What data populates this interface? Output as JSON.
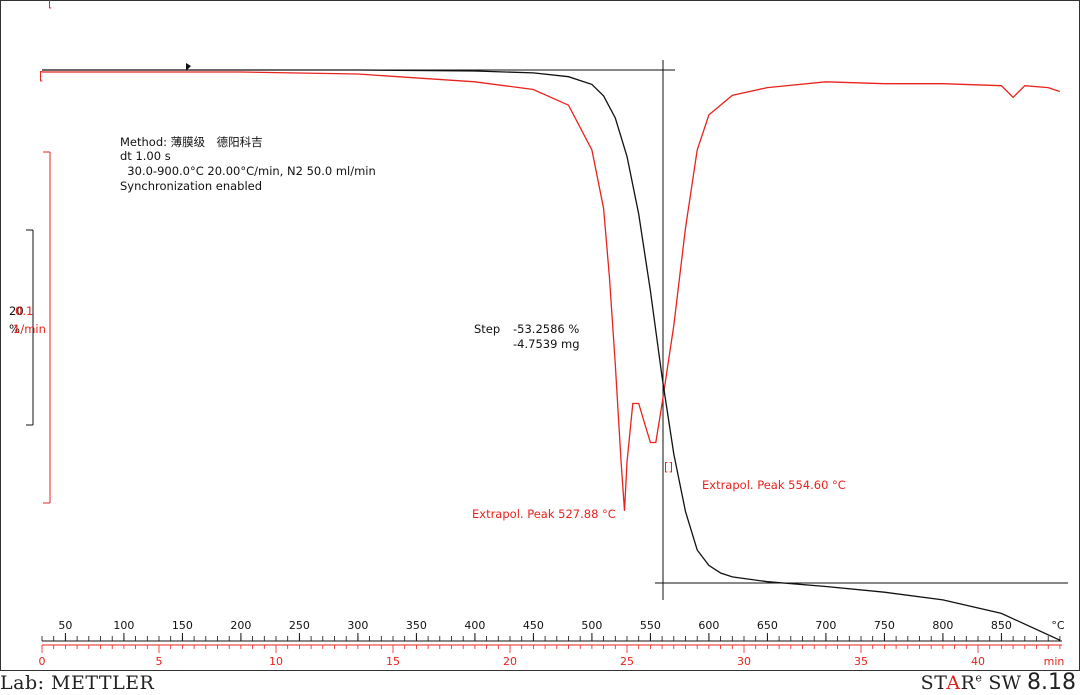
{
  "colors": {
    "tg": "#111111",
    "dtg": "#e8231d"
  },
  "method": {
    "line1": "Method: 薄膜级　德阳科吉",
    "line2": "dt 1.00 s",
    "line3": "  30.0-900.0°C 20.00°C/min, N2 50.0 ml/min",
    "line4": "Synchronization enabled"
  },
  "left_scale": {
    "tg_value": "20",
    "tg_unit": "%",
    "dtg_value": "0.1",
    "dtg_unit": "1/min"
  },
  "step": {
    "label": "Step",
    "percent": "-53.2586 %",
    "mass": "-4.7539 mg"
  },
  "peaks": {
    "peak1": "Extrapol. Peak  527.88 °C",
    "peak2": "Extrapol. Peak  554.60 °C"
  },
  "footer": {
    "lab": "Lab: METTLER",
    "brand_pre": "ST",
    "brand_mid": "A",
    "brand_post": "R",
    "brand_sup": "e",
    "sw": " SW ",
    "version": "8.18"
  },
  "chart_data": {
    "type": "line",
    "x_axis_temperature": {
      "unit": "°C",
      "range": [
        30,
        900
      ],
      "tick_labels": [
        "50",
        "100",
        "150",
        "200",
        "250",
        "300",
        "350",
        "400",
        "450",
        "500",
        "550",
        "600",
        "650",
        "700",
        "750",
        "800",
        "850"
      ]
    },
    "x_axis_time": {
      "unit": "min",
      "range": [
        0,
        43.5
      ],
      "tick_labels": [
        "0",
        "5",
        "10",
        "15",
        "20",
        "25",
        "30",
        "35",
        "40"
      ]
    },
    "series": [
      {
        "id": "tg",
        "x_temperature": [
          30,
          100,
          200,
          300,
          400,
          450,
          480,
          500,
          510,
          520,
          530,
          540,
          550,
          560,
          570,
          580,
          590,
          600,
          610,
          620,
          650,
          700,
          750,
          800,
          850,
          900
        ],
        "y_mass_percent": [
          100,
          100,
          100,
          100,
          99.9,
          99.7,
          99.3,
          98.5,
          97.3,
          95,
          91,
          85,
          77,
          68,
          60,
          54,
          50,
          48.4,
          47.6,
          47.2,
          46.7,
          46.2,
          45.6,
          44.8,
          43.4,
          40.6
        ]
      },
      {
        "id": "dtg",
        "x_temperature": [
          30,
          100,
          200,
          300,
          400,
          450,
          480,
          500,
          510,
          515,
          520,
          525,
          527.88,
          530,
          535,
          540,
          545,
          550,
          554.6,
          560,
          570,
          580,
          590,
          600,
          620,
          650,
          700,
          750,
          800,
          850,
          860,
          870,
          890,
          900
        ],
        "y_rate_per_min": [
          0,
          0,
          0,
          -0.001,
          -0.005,
          -0.009,
          -0.017,
          -0.04,
          -0.07,
          -0.105,
          -0.15,
          -0.2,
          -0.225,
          -0.2,
          -0.17,
          -0.17,
          -0.18,
          -0.19,
          -0.19,
          -0.17,
          -0.13,
          -0.08,
          -0.04,
          -0.022,
          -0.012,
          -0.008,
          -0.005,
          -0.006,
          -0.006,
          -0.007,
          -0.013,
          -0.007,
          -0.008,
          -0.01
        ]
      }
    ]
  }
}
